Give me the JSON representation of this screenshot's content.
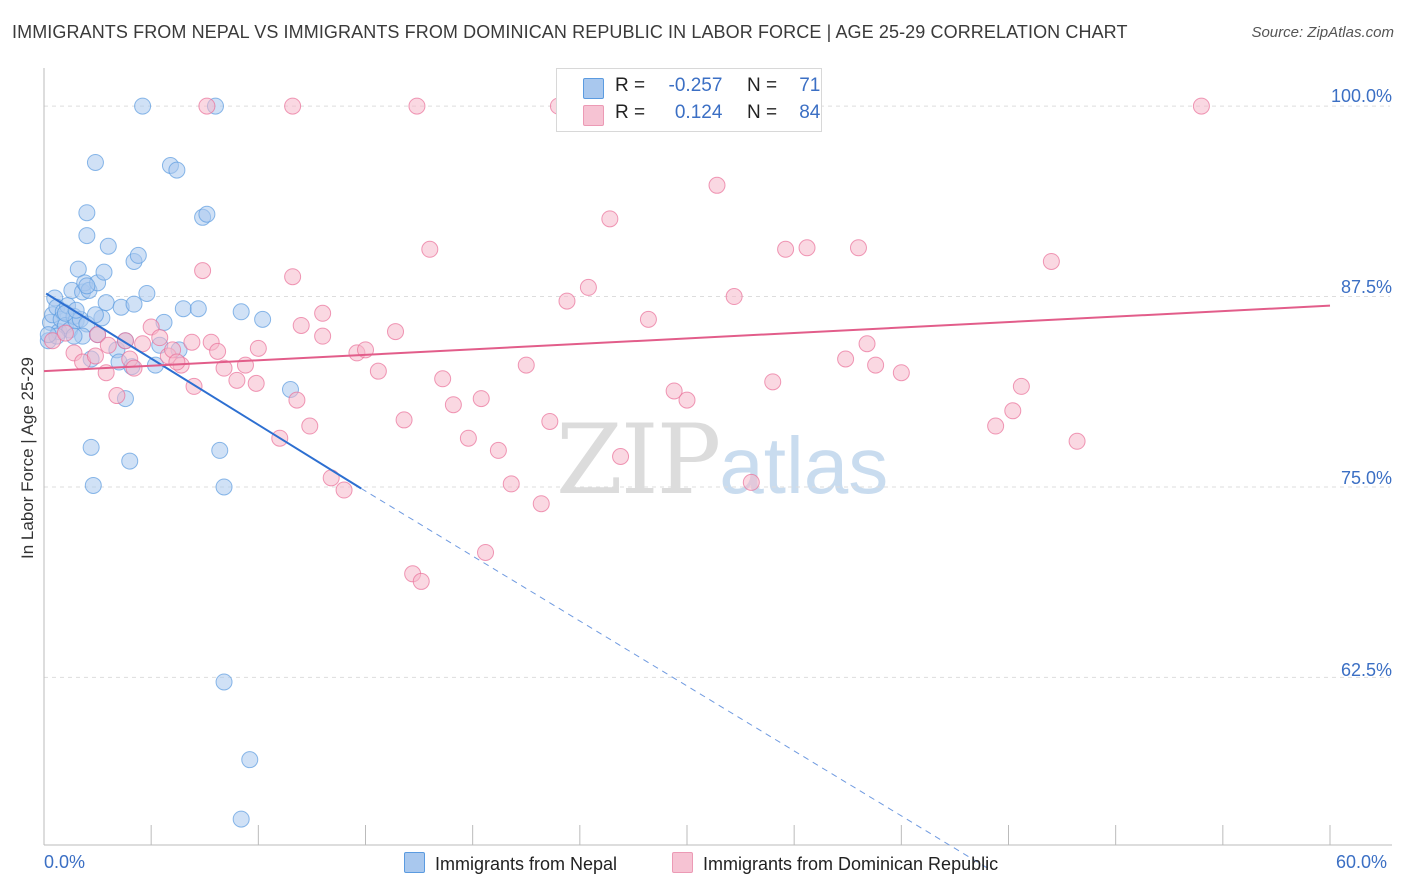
{
  "header": {
    "title": "IMMIGRANTS FROM NEPAL VS IMMIGRANTS FROM DOMINICAN REPUBLIC IN LABOR FORCE | AGE 25-29 CORRELATION CHART",
    "source": "Source: ZipAtlas.com"
  },
  "watermark": {
    "zip": "ZIP",
    "atlas": "atlas"
  },
  "legend": {
    "rows": [
      {
        "r_label": "R =",
        "r_value": "-0.257",
        "n_label": "N =",
        "n_value": "71",
        "color": "#a9c8ee"
      },
      {
        "r_label": "R =",
        "r_value": "0.124",
        "n_label": "N =",
        "n_value": "84",
        "color": "#f6b8ca"
      }
    ]
  },
  "bottom_legend": {
    "nepal": "Immigrants from Nepal",
    "dominican": "Immigrants from Dominican Republic"
  },
  "chart_data": {
    "type": "scatter",
    "title": "IMMIGRANTS FROM NEPAL VS IMMIGRANTS FROM DOMINICAN REPUBLIC IN LABOR FORCE | AGE 25-29 CORRELATION CHART",
    "xlabel": "",
    "ylabel": "In Labor Force | Age 25-29",
    "xlim": [
      0,
      60
    ],
    "ylim": [
      51.5,
      102.5
    ],
    "x_tick_labels": [
      "0.0%",
      "60.0%"
    ],
    "y_ticks": [
      62.5,
      75.0,
      87.5,
      100.0
    ],
    "y_tick_labels": [
      "62.5%",
      "75.0%",
      "87.5%",
      "100.0%"
    ],
    "grid": true,
    "legend_position": "top-center",
    "series": [
      {
        "name": "Immigrants from Nepal",
        "color": "#5b9be0",
        "fill": "#a9c8ee",
        "R": -0.257,
        "N": 71,
        "trend": {
          "x0": 0.1,
          "y0": 87.7,
          "x1": 14.8,
          "y1": 74.9,
          "dash_to_x": 44.0,
          "dash_to_y": 50.0
        },
        "points": [
          [
            0.2,
            84.6
          ],
          [
            0.3,
            85.8
          ],
          [
            0.4,
            86.3
          ],
          [
            0.5,
            87.4
          ],
          [
            0.6,
            86.8
          ],
          [
            0.7,
            85.2
          ],
          [
            0.8,
            86.0
          ],
          [
            0.9,
            86.5
          ],
          [
            1.0,
            85.6
          ],
          [
            1.1,
            86.9
          ],
          [
            1.2,
            85.3
          ],
          [
            1.3,
            87.9
          ],
          [
            1.4,
            86.2
          ],
          [
            1.5,
            85.9
          ],
          [
            1.6,
            89.3
          ],
          [
            1.7,
            86.0
          ],
          [
            1.8,
            87.8
          ],
          [
            1.9,
            88.4
          ],
          [
            2.0,
            85.7
          ],
          [
            2.1,
            87.9
          ],
          [
            2.2,
            83.4
          ],
          [
            1.8,
            84.9
          ],
          [
            2.5,
            88.4
          ],
          [
            2.7,
            86.1
          ],
          [
            2.0,
            88.2
          ],
          [
            2.0,
            91.5
          ],
          [
            2.0,
            93.0
          ],
          [
            2.2,
            77.6
          ],
          [
            2.3,
            75.1
          ],
          [
            2.5,
            85.0
          ],
          [
            2.8,
            89.1
          ],
          [
            2.9,
            87.1
          ],
          [
            3.0,
            90.8
          ],
          [
            2.4,
            86.3
          ],
          [
            3.4,
            84.0
          ],
          [
            3.5,
            83.2
          ],
          [
            3.6,
            86.8
          ],
          [
            3.8,
            80.8
          ],
          [
            3.8,
            84.6
          ],
          [
            4.0,
            76.7
          ],
          [
            4.1,
            82.9
          ],
          [
            4.2,
            89.8
          ],
          [
            4.4,
            90.2
          ],
          [
            2.4,
            96.3
          ],
          [
            4.6,
            100.0
          ],
          [
            4.8,
            87.7
          ],
          [
            4.2,
            87.0
          ],
          [
            5.2,
            83.0
          ],
          [
            5.4,
            84.3
          ],
          [
            5.6,
            85.8
          ],
          [
            5.9,
            96.1
          ],
          [
            6.2,
            95.8
          ],
          [
            6.3,
            84.0
          ],
          [
            6.5,
            86.7
          ],
          [
            7.2,
            86.7
          ],
          [
            7.4,
            92.7
          ],
          [
            7.6,
            92.9
          ],
          [
            8.0,
            100.0
          ],
          [
            8.2,
            77.4
          ],
          [
            8.4,
            62.2
          ],
          [
            8.4,
            75.0
          ],
          [
            9.2,
            86.5
          ],
          [
            9.6,
            57.1
          ],
          [
            10.2,
            86.0
          ],
          [
            11.5,
            81.4
          ],
          [
            9.2,
            53.2
          ],
          [
            0.6,
            84.9
          ],
          [
            1.0,
            86.4
          ],
          [
            1.4,
            84.9
          ],
          [
            1.5,
            86.6
          ],
          [
            0.2,
            85.0
          ]
        ]
      },
      {
        "name": "Immigrants from Dominican Republic",
        "color": "#e96f98",
        "fill": "#f6b8ca",
        "R": 0.124,
        "N": 84,
        "trend": {
          "x0": 0.0,
          "y0": 82.6,
          "x1": 60.0,
          "y1": 86.9
        },
        "points": [
          [
            0.4,
            84.6
          ],
          [
            1.0,
            85.1
          ],
          [
            1.4,
            83.8
          ],
          [
            1.8,
            83.2
          ],
          [
            2.4,
            83.6
          ],
          [
            2.5,
            85.0
          ],
          [
            2.9,
            82.5
          ],
          [
            3.0,
            84.3
          ],
          [
            3.4,
            81.0
          ],
          [
            3.8,
            84.6
          ],
          [
            4.0,
            83.4
          ],
          [
            4.2,
            82.8
          ],
          [
            4.6,
            84.4
          ],
          [
            5.0,
            85.5
          ],
          [
            5.4,
            84.8
          ],
          [
            5.8,
            83.6
          ],
          [
            6.0,
            84.0
          ],
          [
            6.4,
            83.0
          ],
          [
            6.9,
            84.5
          ],
          [
            7.0,
            81.6
          ],
          [
            7.4,
            89.2
          ],
          [
            7.8,
            84.5
          ],
          [
            8.1,
            83.9
          ],
          [
            8.4,
            82.8
          ],
          [
            9.4,
            83.0
          ],
          [
            9.9,
            81.8
          ],
          [
            10.0,
            84.1
          ],
          [
            11.0,
            78.2
          ],
          [
            11.6,
            88.8
          ],
          [
            11.8,
            80.7
          ],
          [
            12.0,
            85.6
          ],
          [
            12.4,
            79.0
          ],
          [
            13.0,
            86.4
          ],
          [
            13.4,
            75.6
          ],
          [
            14.0,
            74.8
          ],
          [
            14.6,
            83.8
          ],
          [
            15.0,
            84.0
          ],
          [
            15.6,
            82.6
          ],
          [
            16.4,
            85.2
          ],
          [
            16.8,
            79.4
          ],
          [
            17.2,
            69.3
          ],
          [
            17.6,
            68.8
          ],
          [
            18.0,
            90.6
          ],
          [
            18.6,
            82.1
          ],
          [
            19.1,
            80.4
          ],
          [
            19.8,
            78.2
          ],
          [
            20.4,
            80.8
          ],
          [
            20.6,
            70.7
          ],
          [
            21.2,
            77.4
          ],
          [
            21.8,
            75.2
          ],
          [
            22.5,
            83.0
          ],
          [
            23.2,
            73.9
          ],
          [
            23.6,
            79.3
          ],
          [
            24.0,
            100.0
          ],
          [
            24.4,
            87.2
          ],
          [
            25.4,
            88.1
          ],
          [
            26.4,
            92.6
          ],
          [
            26.9,
            77.0
          ],
          [
            28.2,
            86.0
          ],
          [
            29.4,
            81.3
          ],
          [
            30.0,
            80.7
          ],
          [
            31.4,
            94.8
          ],
          [
            32.2,
            87.5
          ],
          [
            33.0,
            75.3
          ],
          [
            34.0,
            81.9
          ],
          [
            34.6,
            90.6
          ],
          [
            35.6,
            90.7
          ],
          [
            37.4,
            83.4
          ],
          [
            38.0,
            90.7
          ],
          [
            38.4,
            84.4
          ],
          [
            38.8,
            83.0
          ],
          [
            40.0,
            82.5
          ],
          [
            44.4,
            79.0
          ],
          [
            45.2,
            80.0
          ],
          [
            45.6,
            81.6
          ],
          [
            47.0,
            89.8
          ],
          [
            48.2,
            78.0
          ],
          [
            54.0,
            100.0
          ],
          [
            7.6,
            100.0
          ],
          [
            11.6,
            100.0
          ],
          [
            17.4,
            100.0
          ],
          [
            9.0,
            82.0
          ],
          [
            13.0,
            84.9
          ],
          [
            6.2,
            83.2
          ]
        ]
      }
    ]
  }
}
